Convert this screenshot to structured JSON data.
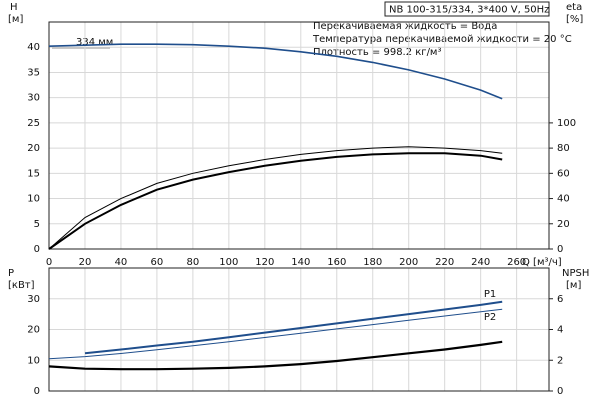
{
  "chart_data": [
    {
      "type": "line",
      "header": "NB 100-315/334, 3*400 V, 50Hz",
      "notes": [
        "Перекачиваемая жидкость = Вода",
        "Температура перекачиваемой жидкости = 20 °C",
        "Плотность = 998.2 кг/м³"
      ],
      "y_label": "H",
      "y_unit": "[м]",
      "y2_label": "eta",
      "y2_unit": "[%]",
      "x_label": "Q [м³/ч]",
      "curve_label": "334 мм",
      "x": [
        0,
        20,
        40,
        60,
        80,
        100,
        120,
        140,
        160,
        180,
        200,
        220,
        240,
        252
      ],
      "series": [
        {
          "color": "#1f4e8c",
          "values": [
            40.2,
            40.4,
            40.6,
            40.6,
            40.5,
            40.2,
            39.8,
            39.1,
            38.2,
            37.0,
            35.5,
            33.7,
            31.5,
            29.8
          ]
        },
        {
          "color": "#000000",
          "axis": "y2",
          "values": [
            0,
            25,
            40,
            52,
            60,
            66,
            71,
            75,
            78,
            80,
            81,
            80,
            78,
            76
          ]
        },
        {
          "color": "#000000",
          "axis": "y2",
          "values": [
            0,
            20,
            35,
            47,
            55,
            61,
            66,
            70,
            73,
            75,
            76,
            76,
            74,
            71
          ]
        }
      ],
      "xlim": [
        0,
        278
      ],
      "xticks": [
        0,
        20,
        40,
        60,
        80,
        100,
        120,
        140,
        160,
        180,
        200,
        220,
        240,
        260
      ],
      "ylim": [
        0,
        45
      ],
      "yticks": [
        0,
        5,
        10,
        15,
        20,
        25,
        30,
        35,
        40
      ],
      "y2lim": [
        0,
        180
      ],
      "y2ticks": [
        0,
        20,
        40,
        60,
        80,
        100
      ],
      "grid": true
    },
    {
      "type": "line",
      "y_label": "P",
      "y_unit": "[кВт]",
      "y2_label": "NPSH",
      "y2_unit": "[м]",
      "x": [
        0,
        20,
        40,
        60,
        80,
        100,
        120,
        140,
        160,
        180,
        200,
        220,
        240,
        252
      ],
      "series": [
        {
          "name": "P1",
          "color": "#1f4e8c",
          "values": [
            null,
            12.3,
            13.5,
            14.8,
            16.0,
            17.5,
            19.0,
            20.5,
            22.0,
            23.5,
            25.0,
            26.5,
            28.0,
            29.0
          ]
        },
        {
          "name": "P2",
          "color": "#1f4e8c",
          "values": [
            10.5,
            11.2,
            12.2,
            13.4,
            14.7,
            16.0,
            17.4,
            18.8,
            20.2,
            21.6,
            23.0,
            24.4,
            25.8,
            26.6
          ]
        },
        {
          "color": "#000000",
          "axis": "y2",
          "values": [
            1.6,
            1.45,
            1.42,
            1.42,
            1.45,
            1.5,
            1.6,
            1.75,
            1.95,
            2.2,
            2.45,
            2.7,
            3.0,
            3.2
          ]
        }
      ],
      "xlim": [
        0,
        278
      ],
      "ylim": [
        0,
        40
      ],
      "yticks": [
        0,
        10,
        20,
        30
      ],
      "y2lim": [
        0,
        8
      ],
      "y2ticks": [
        0,
        2,
        4,
        6
      ],
      "grid": true
    }
  ]
}
